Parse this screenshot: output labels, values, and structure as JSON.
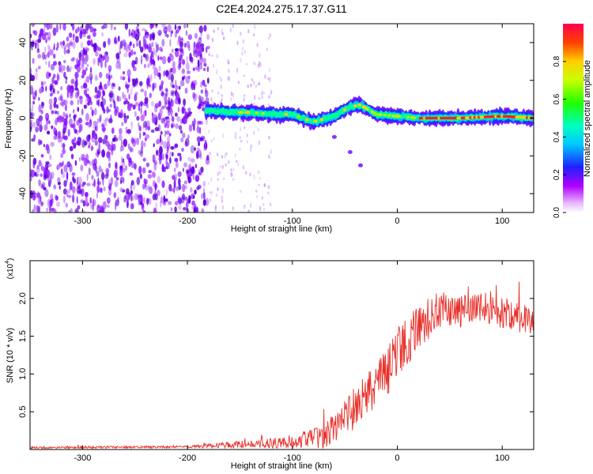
{
  "figure": {
    "title": "C2E4.2024.275.17.37.G11"
  },
  "chart_data": [
    {
      "type": "heatmap",
      "xlabel": "Height of straight line (km)",
      "ylabel": "Frequency (Hz)",
      "xlim": [
        -350,
        130
      ],
      "ylim": [
        -50,
        50
      ],
      "x_ticks": [
        -300,
        -200,
        -100,
        0,
        100
      ],
      "y_ticks": [
        -40,
        -20,
        0,
        20,
        40
      ],
      "colorbar": {
        "label": "Normalized spectral amplitude",
        "range": [
          0.0,
          1.0
        ],
        "ticks": [
          "0.0",
          "0.2",
          "0.4",
          "0.6",
          "0.8"
        ],
        "colors": [
          "#ffffff",
          "#cc00ff",
          "#0000ff",
          "#00ffff",
          "#00ff00",
          "#ffff00",
          "#ff0000"
        ]
      },
      "noise_region_x": [
        -350,
        -180
      ],
      "signal_track": [
        {
          "x": -180,
          "f": 4
        },
        {
          "x": -160,
          "f": 3
        },
        {
          "x": -140,
          "f": 3
        },
        {
          "x": -120,
          "f": 2
        },
        {
          "x": -100,
          "f": 2
        },
        {
          "x": -80,
          "f": -2
        },
        {
          "x": -60,
          "f": 1
        },
        {
          "x": -45,
          "f": 6
        },
        {
          "x": -35,
          "f": 7
        },
        {
          "x": -20,
          "f": 2
        },
        {
          "x": 0,
          "f": 1
        },
        {
          "x": 20,
          "f": 0
        },
        {
          "x": 60,
          "f": 0
        },
        {
          "x": 100,
          "f": 1
        },
        {
          "x": 130,
          "f": 0
        }
      ],
      "secondary_branch": [
        {
          "x": -80,
          "f": -5
        },
        {
          "x": -60,
          "f": -10
        },
        {
          "x": -45,
          "f": -18
        },
        {
          "x": -35,
          "f": -25
        }
      ]
    },
    {
      "type": "line",
      "xlabel": "Height of straight line (km)",
      "ylabel": "SNR (10 * v/v)",
      "y_multiplier": "(x10",
      "y_exponent": "4",
      "xlim": [
        -350,
        130
      ],
      "ylim": [
        0,
        2.5
      ],
      "x_ticks": [
        -300,
        -200,
        -100,
        0,
        100
      ],
      "y_ticks": [
        0.5,
        1.0,
        1.5,
        2.0
      ],
      "y_tick_labels": [
        "0.5",
        "1.0",
        "1.5",
        "2.0"
      ],
      "color": "#e8302a",
      "envelope": [
        {
          "x": -350,
          "base": 0.02,
          "spread": 0.03
        },
        {
          "x": -200,
          "base": 0.03,
          "spread": 0.03
        },
        {
          "x": -160,
          "base": 0.05,
          "spread": 0.08
        },
        {
          "x": -110,
          "base": 0.07,
          "spread": 0.15
        },
        {
          "x": -70,
          "base": 0.12,
          "spread": 0.3
        },
        {
          "x": -50,
          "base": 0.35,
          "spread": 0.5
        },
        {
          "x": -30,
          "base": 0.6,
          "spread": 0.6
        },
        {
          "x": -10,
          "base": 0.9,
          "spread": 0.7
        },
        {
          "x": 0,
          "base": 1.2,
          "spread": 0.7
        },
        {
          "x": 20,
          "base": 1.5,
          "spread": 0.6
        },
        {
          "x": 40,
          "base": 1.8,
          "spread": 0.5
        },
        {
          "x": 60,
          "base": 1.75,
          "spread": 0.45
        },
        {
          "x": 80,
          "base": 1.8,
          "spread": 0.45
        },
        {
          "x": 100,
          "base": 1.75,
          "spread": 0.45
        },
        {
          "x": 130,
          "base": 1.65,
          "spread": 0.4
        }
      ]
    }
  ]
}
